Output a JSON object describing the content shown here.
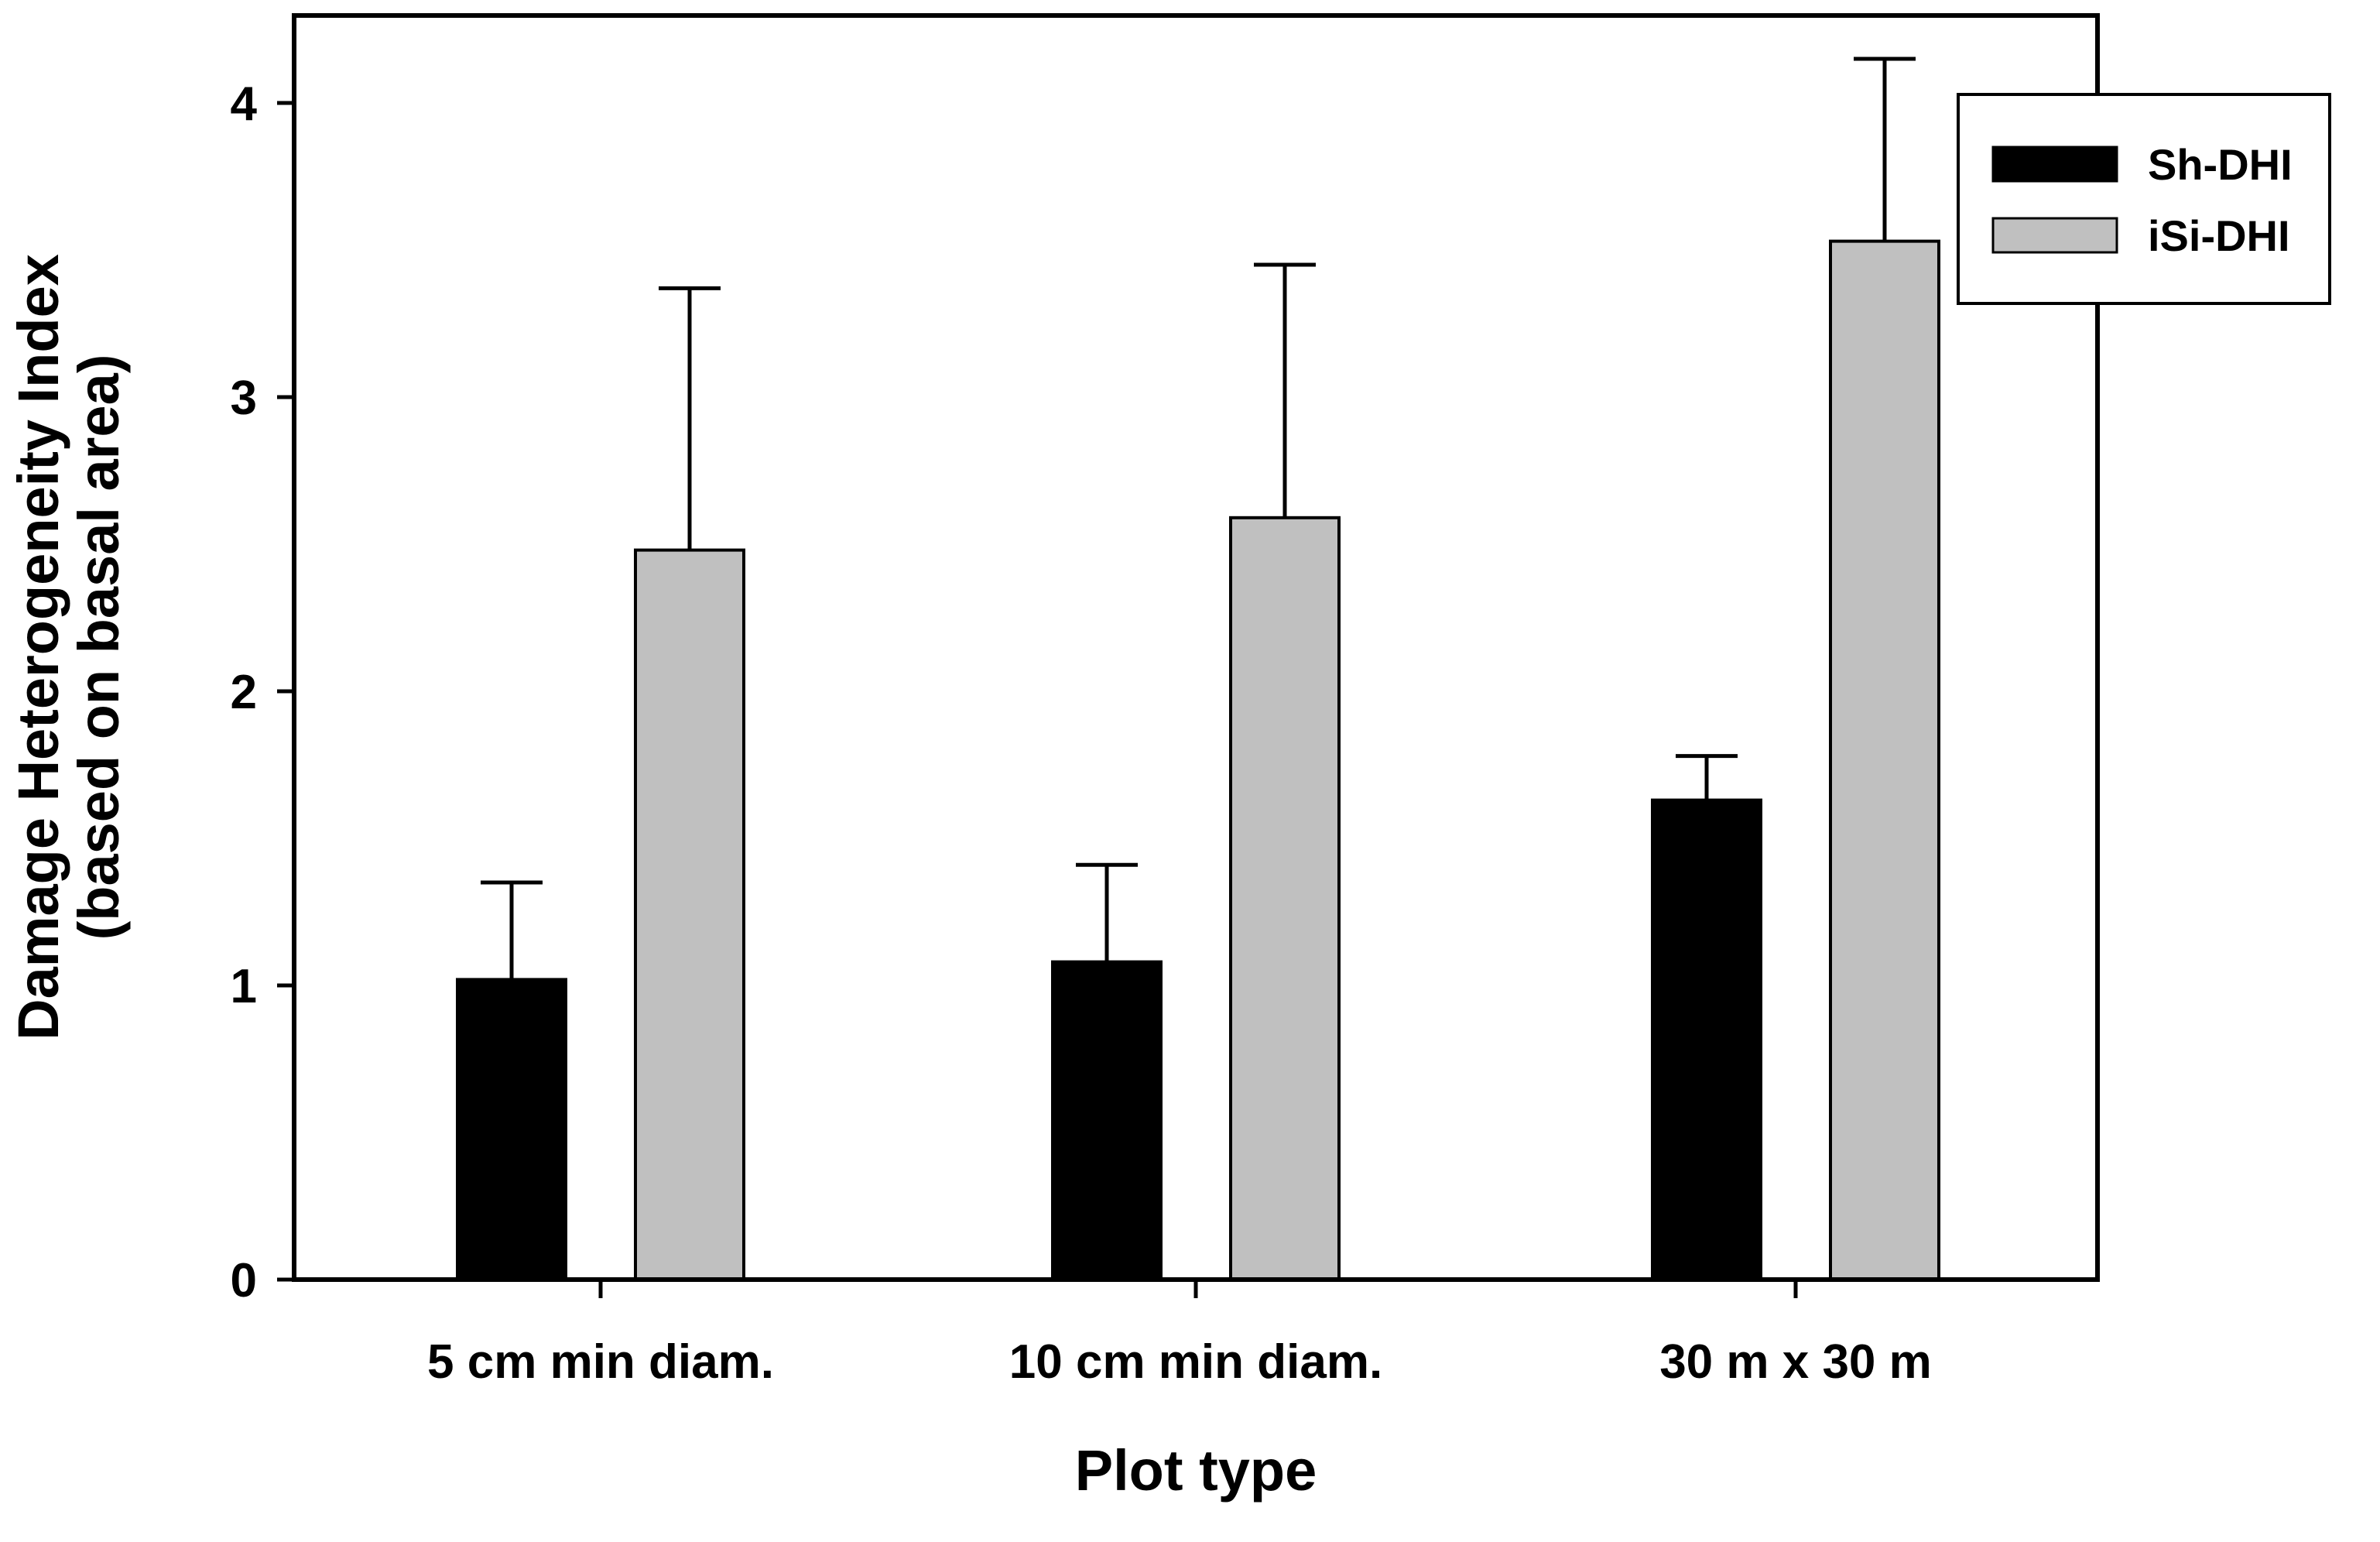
{
  "chart_data": {
    "type": "bar",
    "title": "",
    "xlabel": "Plot type",
    "ylabel": [
      "Damage Heterogeneity Index",
      "(based on basal area)"
    ],
    "categories": [
      "5 cm min diam.",
      "10 cm min diam.",
      "30 m x 30 m"
    ],
    "series": [
      {
        "name": "Sh-DHI",
        "color": "#000000",
        "values": [
          1.02,
          1.08,
          1.63
        ],
        "error_upper": [
          0.33,
          0.33,
          0.15
        ]
      },
      {
        "name": "iSi-DHI",
        "color": "#c0c0c0",
        "values": [
          2.48,
          2.59,
          3.53
        ],
        "error_upper": [
          0.89,
          0.86,
          0.62
        ]
      }
    ],
    "ylim": [
      0,
      4.2
    ],
    "yticks": [
      0,
      1,
      2,
      3,
      4
    ],
    "legend_position": "top-right",
    "grid": false
  }
}
